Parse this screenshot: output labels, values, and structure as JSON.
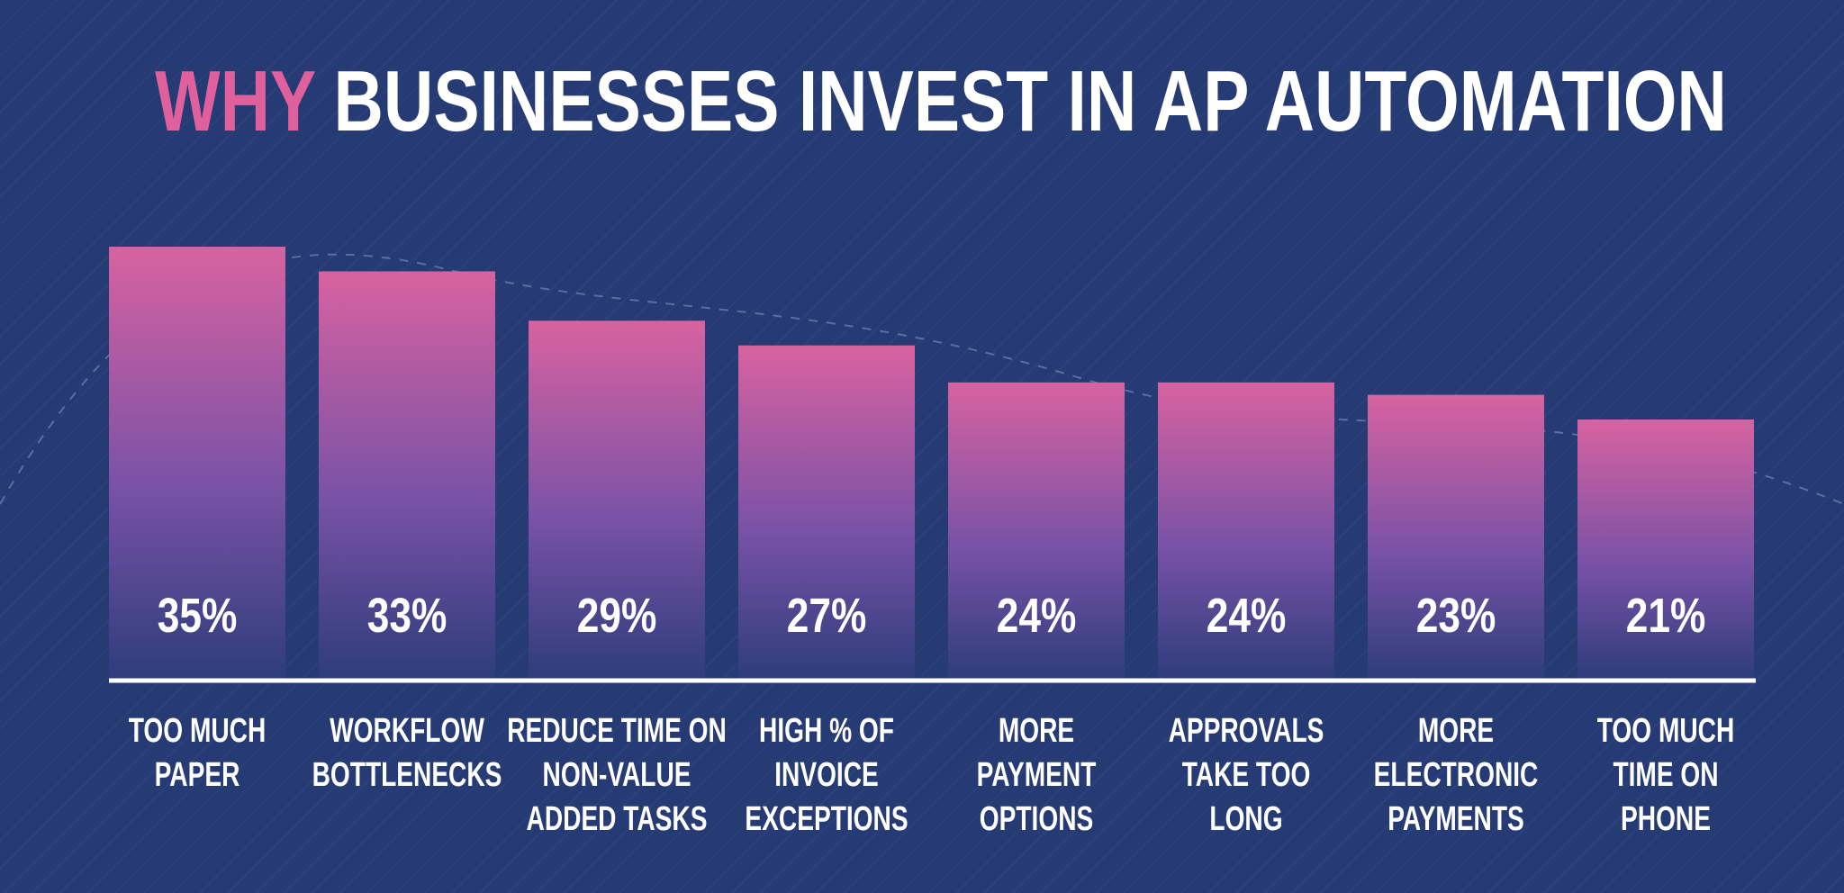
{
  "chart_data": {
    "type": "bar",
    "title_highlight": "WHY",
    "title": "BUSINESSES INVEST IN AP AUTOMATION",
    "categories": [
      "TOO MUCH\nPAPER",
      "WORKFLOW\nBOTTLENECKS",
      "REDUCE TIME ON\nNON-VALUE\nADDED TASKS",
      "HIGH % OF\nINVOICE\nEXCEPTIONS",
      "MORE\nPAYMENT\nOPTIONS",
      "APPROVALS\nTAKE TOO\nLONG",
      "MORE\nELECTRONIC\nPAYMENTS",
      "TOO MUCH\nTIME ON\nPHONE"
    ],
    "values": [
      35,
      33,
      29,
      27,
      24,
      24,
      23,
      21
    ],
    "value_labels": [
      "35%",
      "33%",
      "29%",
      "27%",
      "24%",
      "24%",
      "23%",
      "21%"
    ],
    "color": "#d862a0",
    "title_highlight_color": "#e0609e"
  }
}
